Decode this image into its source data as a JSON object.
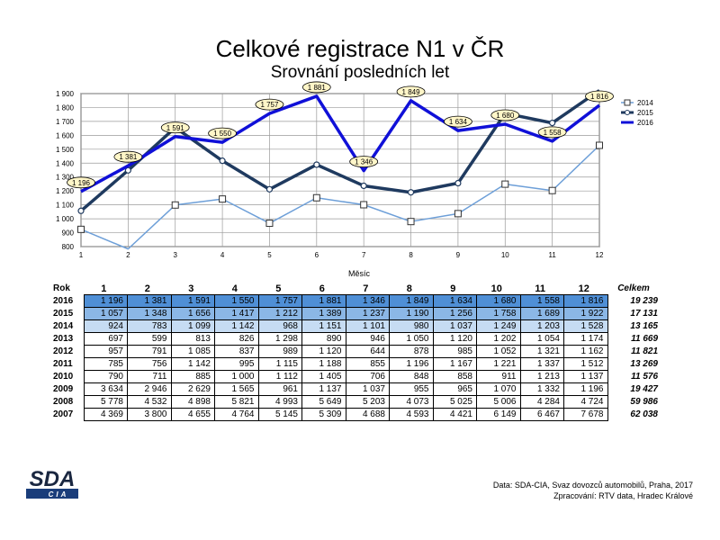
{
  "header": {
    "title": "Celkové registrace N1 v ČR",
    "subtitle": "Srovnání posledních let"
  },
  "chart_data": {
    "type": "line",
    "title": "Celkové registrace N1 v ČR",
    "subtitle": "Srovnání posledních let",
    "xlabel": "Měsíc",
    "ylabel": "",
    "ylim": [
      800,
      1900
    ],
    "yticks": [
      800,
      900,
      1000,
      1100,
      1200,
      1300,
      1400,
      1500,
      1600,
      1700,
      1800,
      1900
    ],
    "ytick_labels": [
      "800",
      "900",
      "1 000",
      "1 100",
      "1 200",
      "1 300",
      "1 400",
      "1 500",
      "1 600",
      "1 700",
      "1 800",
      "1 900"
    ],
    "categories": [
      "1",
      "2",
      "3",
      "4",
      "5",
      "6",
      "7",
      "8",
      "9",
      "10",
      "11",
      "12"
    ],
    "grid": true,
    "legend_position": "top-right",
    "series": [
      {
        "name": "2014",
        "values": [
          924,
          783,
          1099,
          1142,
          968,
          1151,
          1101,
          980,
          1037,
          1249,
          1203,
          1528
        ],
        "color": "#6d9fd8",
        "marker": "square",
        "width": 1.5
      },
      {
        "name": "2015",
        "values": [
          1057,
          1348,
          1656,
          1417,
          1212,
          1389,
          1237,
          1190,
          1256,
          1758,
          1689,
          1922
        ],
        "color": "#1f3a5f",
        "marker": "circle",
        "width": 3.5
      },
      {
        "name": "2016",
        "values": [
          1196,
          1381,
          1591,
          1550,
          1757,
          1881,
          1346,
          1849,
          1634,
          1680,
          1558,
          1816
        ],
        "color": "#1010d8",
        "marker": "none",
        "width": 3.5
      }
    ],
    "data_labels": {
      "series": "2016",
      "labels": [
        "1 196",
        "1 381",
        "1 591",
        "1 550",
        "1 757",
        "1 881",
        "1 346",
        "1 849",
        "1 634",
        "1 680",
        "1 558",
        "1 816"
      ]
    }
  },
  "table": {
    "year_header": "Rok",
    "total_header": "Celkem",
    "months": [
      "1",
      "2",
      "3",
      "4",
      "5",
      "6",
      "7",
      "8",
      "9",
      "10",
      "11",
      "12"
    ],
    "rows": [
      {
        "year": "2016",
        "values": [
          "1 196",
          "1 381",
          "1 591",
          "1 550",
          "1 757",
          "1 881",
          "1 346",
          "1 849",
          "1 634",
          "1 680",
          "1 558",
          "1 816"
        ],
        "total": "19 239"
      },
      {
        "year": "2015",
        "values": [
          "1 057",
          "1 348",
          "1 656",
          "1 417",
          "1 212",
          "1 389",
          "1 237",
          "1 190",
          "1 256",
          "1 758",
          "1 689",
          "1 922"
        ],
        "total": "17 131"
      },
      {
        "year": "2014",
        "values": [
          "924",
          "783",
          "1 099",
          "1 142",
          "968",
          "1 151",
          "1 101",
          "980",
          "1 037",
          "1 249",
          "1 203",
          "1 528"
        ],
        "total": "13 165"
      },
      {
        "year": "2013",
        "values": [
          "697",
          "599",
          "813",
          "826",
          "1 298",
          "890",
          "946",
          "1 050",
          "1 120",
          "1 202",
          "1 054",
          "1 174"
        ],
        "total": "11 669"
      },
      {
        "year": "2012",
        "values": [
          "957",
          "791",
          "1 085",
          "837",
          "989",
          "1 120",
          "644",
          "878",
          "985",
          "1 052",
          "1 321",
          "1 162"
        ],
        "total": "11 821"
      },
      {
        "year": "2011",
        "values": [
          "785",
          "756",
          "1 142",
          "995",
          "1 115",
          "1 188",
          "855",
          "1 196",
          "1 167",
          "1 221",
          "1 337",
          "1 512"
        ],
        "total": "13 269"
      },
      {
        "year": "2010",
        "values": [
          "790",
          "711",
          "885",
          "1 000",
          "1 112",
          "1 405",
          "706",
          "848",
          "858",
          "911",
          "1 213",
          "1 137"
        ],
        "total": "11 576"
      },
      {
        "year": "2009",
        "values": [
          "3 634",
          "2 946",
          "2 629",
          "1 565",
          "961",
          "1 137",
          "1 037",
          "955",
          "965",
          "1 070",
          "1 332",
          "1 196"
        ],
        "total": "19 427"
      },
      {
        "year": "2008",
        "values": [
          "5 778",
          "4 532",
          "4 898",
          "5 821",
          "4 993",
          "5 649",
          "5 203",
          "4 073",
          "5 025",
          "5 006",
          "4 284",
          "4 724"
        ],
        "total": "59 986"
      },
      {
        "year": "2007",
        "values": [
          "4 369",
          "3 800",
          "4 655",
          "4 764",
          "5 145",
          "5 309",
          "4 688",
          "4 593",
          "4 421",
          "6 149",
          "6 467",
          "7 678"
        ],
        "total": "62 038"
      }
    ]
  },
  "logo": {
    "main": "SDA",
    "sub": "CIA"
  },
  "source": {
    "line1": "Data: SDA-CIA, Svaz dovozců automobilů, Praha, 2017",
    "line2": "Zpracování: RTV data, Hradec Králové"
  }
}
